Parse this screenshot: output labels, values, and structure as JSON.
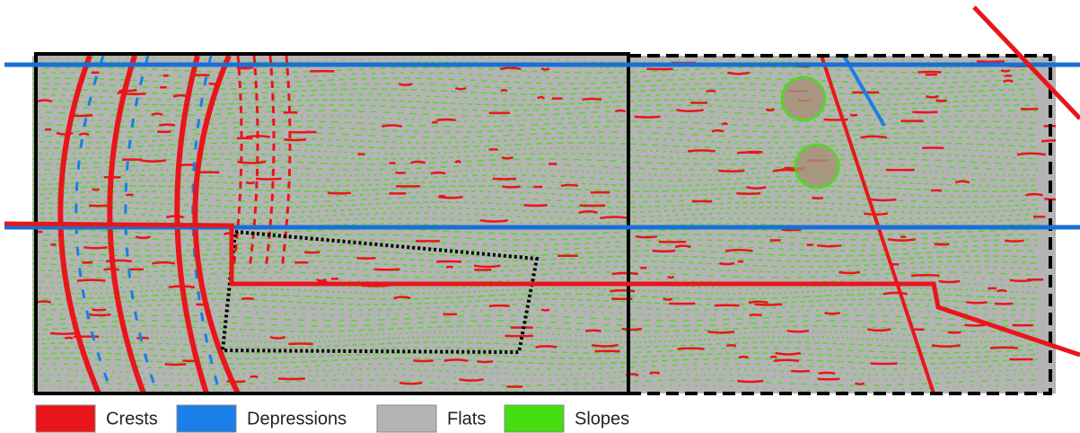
{
  "legend": [
    {
      "label": "Crests",
      "color": "#e8161b"
    },
    {
      "label": "Depressions",
      "color": "#1a7fe6"
    },
    {
      "label": "Flats",
      "color": "#b4b4b4"
    },
    {
      "label": "Slopes",
      "color": "#44dd11"
    }
  ]
}
